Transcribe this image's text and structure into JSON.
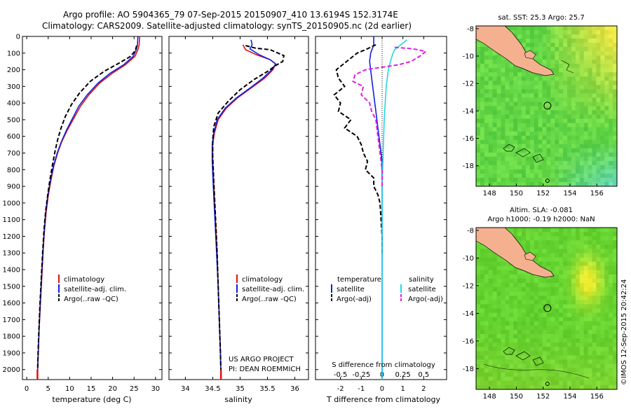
{
  "header": {
    "line1": "Argo profile: AO 5904365_79 07-Sep-2015 20150907_410 13.6194S 152.3174E",
    "line2": "Climatology: CARS2009. Satellite-adjusted climatology: synTS_20150905.nc (2d earlier)"
  },
  "depth_ticks": [
    0,
    100,
    200,
    300,
    400,
    500,
    600,
    700,
    800,
    900,
    1000,
    1100,
    1200,
    1300,
    1400,
    1500,
    1600,
    1700,
    1800,
    1900,
    2000
  ],
  "colors": {
    "climatology": "#e01010",
    "satellite": "#1020e0",
    "argo": "#000000",
    "sat_salinity": "#20d8e8",
    "argo_salinity": "#e020e0"
  },
  "chart_data": [
    {
      "id": "temperature",
      "type": "line",
      "xlabel": "temperature (deg C)",
      "ylabel": "",
      "xlim": [
        -1,
        31.5
      ],
      "ylim": [
        2060,
        0
      ],
      "xticks": [
        0,
        5,
        10,
        15,
        20,
        25,
        30
      ],
      "legend": [
        "climatology",
        "satellite-adj. clim.",
        "Argo(..raw -QC)"
      ],
      "legend_placement": "bottom-center",
      "series": [
        {
          "name": "climatology",
          "style": "solid",
          "color": "#e01010",
          "points": [
            [
              26.3,
              0
            ],
            [
              26.2,
              50
            ],
            [
              25.9,
              80
            ],
            [
              25.2,
              120
            ],
            [
              23,
              170
            ],
            [
              20,
              220
            ],
            [
              17,
              280
            ],
            [
              14.5,
              350
            ],
            [
              12.5,
              420
            ],
            [
              11,
              490
            ],
            [
              9.5,
              560
            ],
            [
              8.2,
              630
            ],
            [
              7.2,
              700
            ],
            [
              6.3,
              780
            ],
            [
              5.6,
              870
            ],
            [
              5,
              960
            ],
            [
              4.5,
              1060
            ],
            [
              4.1,
              1180
            ],
            [
              3.8,
              1300
            ],
            [
              3.5,
              1450
            ],
            [
              3.2,
              1600
            ],
            [
              2.9,
              1750
            ],
            [
              2.7,
              1900
            ],
            [
              2.55,
              2000
            ],
            [
              2.5,
              2060
            ]
          ]
        },
        {
          "name": "satellite-adj. clim.",
          "style": "solid",
          "color": "#1020e0",
          "points": [
            [
              25.9,
              0
            ],
            [
              25.8,
              50
            ],
            [
              25.5,
              80
            ],
            [
              24.8,
              120
            ],
            [
              22.6,
              170
            ],
            [
              19.5,
              220
            ],
            [
              16.6,
              280
            ],
            [
              14.1,
              350
            ],
            [
              12.1,
              420
            ],
            [
              10.7,
              490
            ],
            [
              9.3,
              560
            ],
            [
              8.1,
              630
            ],
            [
              7.1,
              700
            ],
            [
              6.2,
              780
            ],
            [
              5.5,
              870
            ],
            [
              4.9,
              960
            ],
            [
              4.4,
              1060
            ],
            [
              4.05,
              1180
            ],
            [
              3.75,
              1300
            ],
            [
              3.45,
              1450
            ],
            [
              3.15,
              1600
            ],
            [
              2.88,
              1750
            ],
            [
              2.68,
              1900
            ],
            [
              2.55,
              2000
            ],
            [
              2.5,
              2060
            ]
          ]
        },
        {
          "name": "Argo(..raw -QC)",
          "style": "dashed",
          "color": "#000000",
          "points": [
            [
              25.6,
              55
            ],
            [
              25.3,
              85
            ],
            [
              24.2,
              120
            ],
            [
              21.5,
              160
            ],
            [
              18,
              210
            ],
            [
              14.8,
              270
            ],
            [
              12.3,
              340
            ],
            [
              10.4,
              410
            ],
            [
              9,
              480
            ],
            [
              8,
              550
            ],
            [
              7.2,
              620
            ],
            [
              6.6,
              690
            ],
            [
              6,
              770
            ],
            [
              5.4,
              860
            ],
            [
              4.9,
              950
            ],
            [
              4.4,
              1050
            ],
            [
              4,
              1170
            ],
            [
              3.7,
              1300
            ],
            [
              3.4,
              1450
            ],
            [
              3.1,
              1600
            ],
            [
              2.85,
              1750
            ],
            [
              2.65,
              1900
            ],
            [
              2.55,
              2000
            ]
          ]
        }
      ]
    },
    {
      "id": "salinity",
      "type": "line",
      "xlabel": "salinity",
      "ylabel": "",
      "xlim": [
        33.7,
        36.25
      ],
      "ylim": [
        2060,
        0
      ],
      "xticks": [
        34,
        34.5,
        35,
        35.5,
        36
      ],
      "legend": [
        "climatology",
        "satellite-adj. clim.",
        "Argo(..raw -QC)"
      ],
      "legend_placement": "bottom-center",
      "series": [
        {
          "name": "climatology",
          "style": "solid",
          "color": "#e01010",
          "points": [
            [
              35.05,
              50
            ],
            [
              35.1,
              80
            ],
            [
              35.3,
              110
            ],
            [
              35.55,
              140
            ],
            [
              35.65,
              165
            ],
            [
              35.6,
              200
            ],
            [
              35.45,
              250
            ],
            [
              35.2,
              310
            ],
            [
              34.95,
              370
            ],
            [
              34.75,
              430
            ],
            [
              34.6,
              500
            ],
            [
              34.53,
              580
            ],
            [
              34.5,
              650
            ],
            [
              34.5,
              750
            ],
            [
              34.52,
              900
            ],
            [
              34.55,
              1100
            ],
            [
              34.58,
              1300
            ],
            [
              34.6,
              1500
            ],
            [
              34.62,
              1700
            ],
            [
              34.64,
              1900
            ],
            [
              34.65,
              2060
            ]
          ]
        },
        {
          "name": "satellite-adj. clim.",
          "style": "solid",
          "color": "#1020e0",
          "points": [
            [
              35.2,
              20
            ],
            [
              35.22,
              50
            ],
            [
              35.18,
              75
            ],
            [
              35.35,
              110
            ],
            [
              35.55,
              140
            ],
            [
              35.65,
              165
            ],
            [
              35.58,
              200
            ],
            [
              35.42,
              250
            ],
            [
              35.18,
              310
            ],
            [
              34.93,
              370
            ],
            [
              34.73,
              430
            ],
            [
              34.58,
              500
            ],
            [
              34.52,
              580
            ],
            [
              34.49,
              650
            ],
            [
              34.49,
              750
            ],
            [
              34.51,
              900
            ],
            [
              34.54,
              1100
            ],
            [
              34.57,
              1300
            ],
            [
              34.6,
              1500
            ],
            [
              34.62,
              1700
            ],
            [
              34.64,
              1900
            ],
            [
              34.65,
              2060
            ]
          ]
        },
        {
          "name": "Argo(..raw -QC)",
          "style": "dashed",
          "color": "#000000",
          "points": [
            [
              35.1,
              55
            ],
            [
              35.28,
              70
            ],
            [
              35.55,
              80
            ],
            [
              35.8,
              115
            ],
            [
              35.78,
              150
            ],
            [
              35.65,
              175
            ],
            [
              35.5,
              210
            ],
            [
              35.25,
              260
            ],
            [
              35,
              320
            ],
            [
              34.78,
              390
            ],
            [
              34.6,
              460
            ],
            [
              34.52,
              540
            ],
            [
              34.5,
              620
            ],
            [
              34.5,
              720
            ],
            [
              34.52,
              880
            ],
            [
              34.55,
              1080
            ],
            [
              34.58,
              1300
            ],
            [
              34.6,
              1500
            ],
            [
              34.62,
              1700
            ],
            [
              34.64,
              1900
            ],
            [
              34.65,
              2000
            ]
          ]
        }
      ]
    },
    {
      "id": "differences",
      "type": "line",
      "xlabel": "T difference from climatology",
      "x2label": "S difference from climatology",
      "ylabel": "",
      "xlim": [
        -3.2,
        3.1
      ],
      "ylim": [
        2060,
        0
      ],
      "xticks": [
        -2,
        -1,
        0,
        1,
        2
      ],
      "x2ticks": [
        -0.5,
        -0.25,
        0,
        0.25,
        0.5
      ],
      "legend_groups": [
        {
          "title": "temperature",
          "entries": [
            "satellite",
            "Argo(-adj)"
          ]
        },
        {
          "title": "salinity",
          "entries": [
            "satellite",
            "Argo(-adj)"
          ]
        }
      ],
      "legend_placement": "middle",
      "series": [
        {
          "name": "satellite",
          "group": "temperature",
          "style": "solid",
          "color": "#1020e0",
          "points": [
            [
              -0.4,
              0
            ],
            [
              -0.4,
              50
            ],
            [
              -0.55,
              100
            ],
            [
              -0.6,
              150
            ],
            [
              -0.5,
              250
            ],
            [
              -0.4,
              350
            ],
            [
              -0.3,
              450
            ],
            [
              -0.2,
              550
            ],
            [
              -0.1,
              650
            ],
            [
              0,
              750
            ],
            [
              0,
              2060
            ]
          ]
        },
        {
          "name": "Argo(-adj)",
          "group": "temperature",
          "style": "dashed",
          "color": "#000000",
          "points": [
            [
              -0.3,
              50
            ],
            [
              -0.8,
              80
            ],
            [
              -1.2,
              100
            ],
            [
              -1.6,
              140
            ],
            [
              -2.2,
              200
            ],
            [
              -2.1,
              250
            ],
            [
              -1.8,
              300
            ],
            [
              -2.3,
              350
            ],
            [
              -2.0,
              400
            ],
            [
              -2.1,
              450
            ],
            [
              -1.5,
              500
            ],
            [
              -1.8,
              550
            ],
            [
              -1.2,
              600
            ],
            [
              -1.0,
              650
            ],
            [
              -0.9,
              700
            ],
            [
              -0.7,
              750
            ],
            [
              -0.8,
              800
            ],
            [
              -0.4,
              850
            ],
            [
              -0.4,
              900
            ],
            [
              -0.2,
              950
            ],
            [
              -0.1,
              1000
            ],
            [
              -0.05,
              1100
            ],
            [
              0,
              1200
            ],
            [
              0,
              1300
            ]
          ]
        },
        {
          "name": "satellite",
          "group": "salinity",
          "style": "solid",
          "color": "#20d8e8",
          "points": [
            [
              1.2,
              20
            ],
            [
              0.9,
              50
            ],
            [
              0.6,
              80
            ],
            [
              0.5,
              110
            ],
            [
              0.4,
              150
            ],
            [
              0.3,
              200
            ],
            [
              0.2,
              300
            ],
            [
              0.15,
              400
            ],
            [
              0.1,
              500
            ],
            [
              0.05,
              700
            ],
            [
              0,
              900
            ],
            [
              0,
              2060
            ]
          ]
        },
        {
          "name": "Argo(-adj)",
          "group": "salinity",
          "style": "dashed",
          "color": "#e020e0",
          "points": [
            [
              0.6,
              65
            ],
            [
              1.5,
              75
            ],
            [
              2.1,
              90
            ],
            [
              1.8,
              120
            ],
            [
              1.4,
              150
            ],
            [
              0.8,
              170
            ],
            [
              -0.8,
              200
            ],
            [
              -1.3,
              230
            ],
            [
              -1.4,
              270
            ],
            [
              -0.9,
              300
            ],
            [
              -1.0,
              350
            ],
            [
              -0.6,
              400
            ],
            [
              -0.5,
              450
            ],
            [
              -0.3,
              500
            ],
            [
              -0.2,
              600
            ],
            [
              -0.1,
              700
            ],
            [
              0,
              800
            ],
            [
              0,
              900
            ]
          ]
        }
      ]
    },
    {
      "id": "sst-map",
      "type": "heatmap",
      "title": "sat. SST: 25.3 Argo: 25.7",
      "xlim": [
        147,
        157.5
      ],
      "ylim": [
        -19.5,
        -7.8
      ],
      "xticks": [
        148,
        150,
        152,
        154,
        156
      ],
      "yticks": [
        -8,
        -10,
        -12,
        -14,
        -16,
        -18
      ],
      "argo_position": [
        152.32,
        -13.62
      ]
    },
    {
      "id": "sla-map",
      "type": "heatmap",
      "title": "Altim. SLA: -0.081",
      "subtitle": "Argo h1000: -0.19 h2000: NaN",
      "xlim": [
        147,
        157.5
      ],
      "ylim": [
        -19.5,
        -7.8
      ],
      "xticks": [
        148,
        150,
        152,
        154,
        156
      ],
      "yticks": [
        -8,
        -10,
        -12,
        -14,
        -16,
        -18
      ],
      "argo_position": [
        152.32,
        -13.62
      ]
    }
  ],
  "annotations": {
    "project": "US ARGO PROJECT",
    "pi": "PI: DEAN ROEMMICH",
    "watermark": "©IMOS 12-Sep-2015 20:42:24"
  }
}
